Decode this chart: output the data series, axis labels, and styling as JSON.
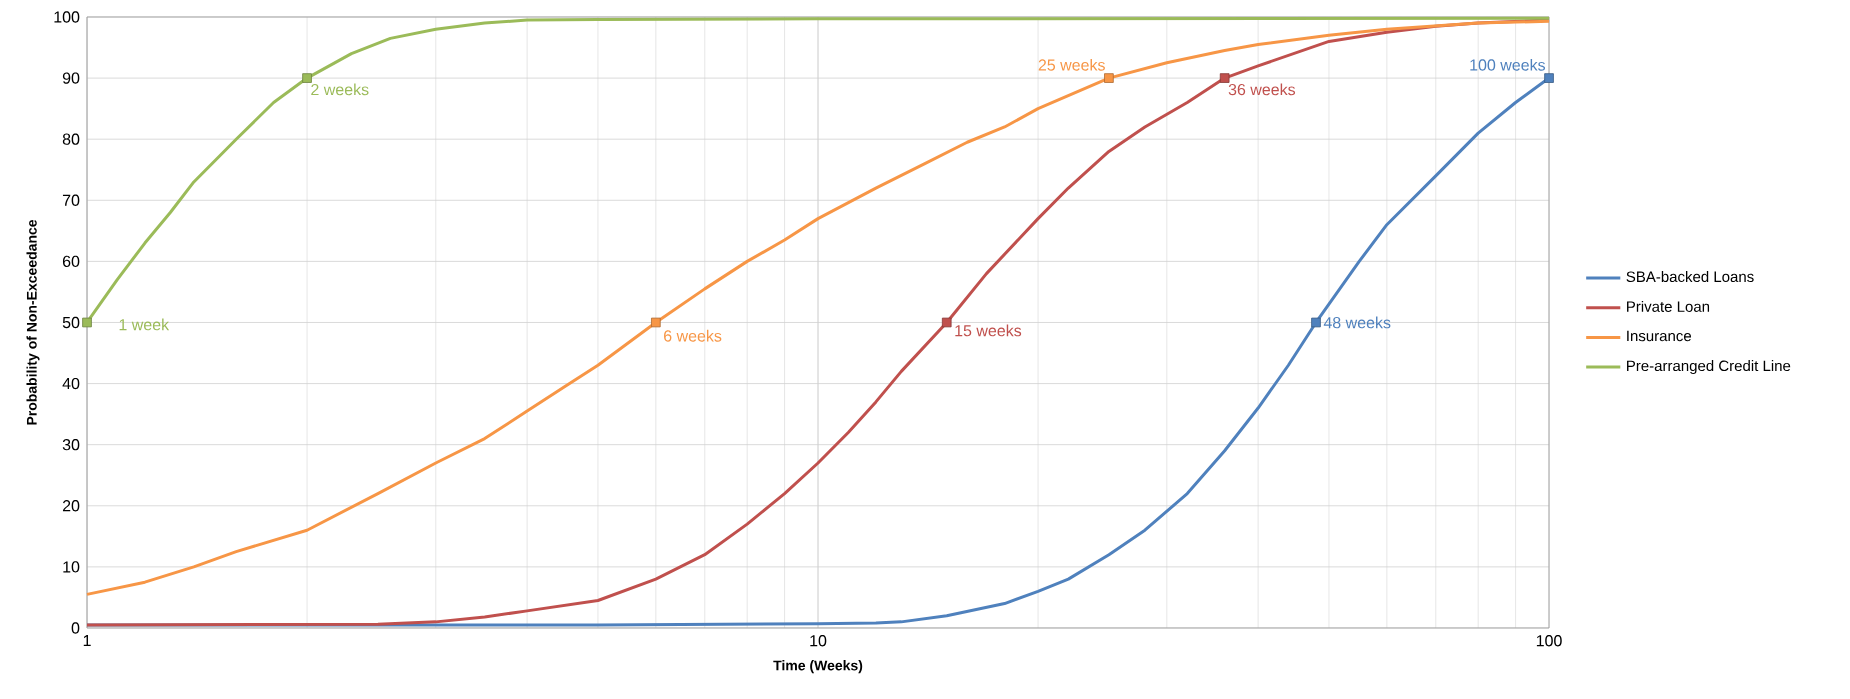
{
  "chart_data": {
    "type": "line",
    "xlabel": "Time (Weeks)",
    "ylabel": "Probability of Non-Exceedance",
    "log": "x",
    "grid": true,
    "legend": "right",
    "xlim": [
      1,
      100
    ],
    "xticks": [
      1,
      10,
      100
    ],
    "ylim": [
      0,
      100
    ],
    "yticks": [
      0,
      10,
      20,
      30,
      40,
      50,
      60,
      70,
      80,
      90,
      100
    ],
    "series": [
      {
        "name": "SBA-backed Loans",
        "color": "#4f81bd",
        "x": [
          1,
          5,
          10,
          12,
          13,
          15,
          18,
          20,
          22,
          25,
          28,
          32,
          36,
          40,
          44,
          48,
          55,
          60,
          70,
          80,
          90,
          100
        ],
        "values": [
          0.5,
          0.5,
          0.7,
          0.8,
          1,
          2,
          4,
          6,
          8,
          12,
          16,
          22,
          29,
          36,
          43,
          50,
          60,
          66,
          74,
          81,
          86,
          90
        ]
      },
      {
        "name": "Private Loan",
        "color": "#c0504d",
        "x": [
          1,
          2.5,
          3,
          3.5,
          4,
          5,
          6,
          7,
          8,
          9,
          10,
          11,
          12,
          13,
          15,
          17,
          20,
          22,
          25,
          28,
          32,
          36,
          40,
          50,
          60,
          70,
          80,
          100
        ],
        "values": [
          0.5,
          0.6,
          1,
          1.8,
          2.8,
          4.5,
          8,
          12,
          17,
          22,
          27,
          32,
          37,
          42,
          50,
          58,
          67,
          72,
          78,
          82,
          86,
          90,
          92,
          96,
          97.5,
          98.5,
          99,
          99.5
        ]
      },
      {
        "name": "Insurance",
        "color": "#f79646",
        "x": [
          1,
          1.2,
          1.4,
          1.6,
          2,
          2.5,
          3,
          3.5,
          4,
          4.5,
          5,
          6,
          7,
          8,
          9,
          10,
          12,
          14,
          16,
          18,
          20,
          25,
          30,
          36,
          40,
          50,
          60,
          80,
          100
        ],
        "values": [
          5.5,
          7.5,
          10,
          12.5,
          16,
          22,
          27,
          31,
          35.5,
          39.5,
          43,
          50,
          55.5,
          60,
          63.5,
          67,
          72,
          76,
          79.5,
          82,
          85,
          90,
          92.5,
          94.5,
          95.5,
          97,
          98,
          99,
          99.3
        ]
      },
      {
        "name": "Pre-arranged Credit Line",
        "color": "#9bbb59",
        "x": [
          1,
          1.1,
          1.2,
          1.3,
          1.4,
          1.6,
          1.8,
          2,
          2.3,
          2.6,
          3,
          3.5,
          4,
          5,
          10,
          100
        ],
        "values": [
          50,
          57,
          63,
          68,
          73,
          80,
          86,
          90,
          94,
          96.5,
          98,
          99,
          99.5,
          99.6,
          99.7,
          99.8
        ]
      },
      {
        "type": "scatter",
        "marker": "square",
        "color": "#4f81bd",
        "x": [
          48,
          100
        ],
        "values": [
          50,
          90
        ]
      },
      {
        "type": "scatter",
        "marker": "square",
        "color": "#c0504d",
        "x": [
          15,
          36
        ],
        "values": [
          50,
          90
        ]
      },
      {
        "type": "scatter",
        "marker": "square",
        "color": "#f79646",
        "x": [
          6,
          25
        ],
        "values": [
          50,
          90
        ]
      },
      {
        "type": "scatter",
        "marker": "square",
        "color": "#9bbb59",
        "x": [
          1,
          2
        ],
        "values": [
          50,
          90
        ]
      }
    ],
    "annotations": [
      {
        "text": "48 weeks",
        "x": 48,
        "y": 50
      },
      {
        "text": "100 weeks",
        "x": 100,
        "y": 90
      },
      {
        "text": "15 weeks",
        "x": 15,
        "y": 50
      },
      {
        "text": "36 weeks",
        "x": 36,
        "y": 90
      },
      {
        "text": "6 weeks",
        "x": 6,
        "y": 50
      },
      {
        "text": "25 weeks",
        "x": 25,
        "y": 90
      },
      {
        "text": "1 week",
        "x": 1,
        "y": 50
      },
      {
        "text": "2 weeks",
        "x": 2,
        "y": 90
      }
    ]
  }
}
